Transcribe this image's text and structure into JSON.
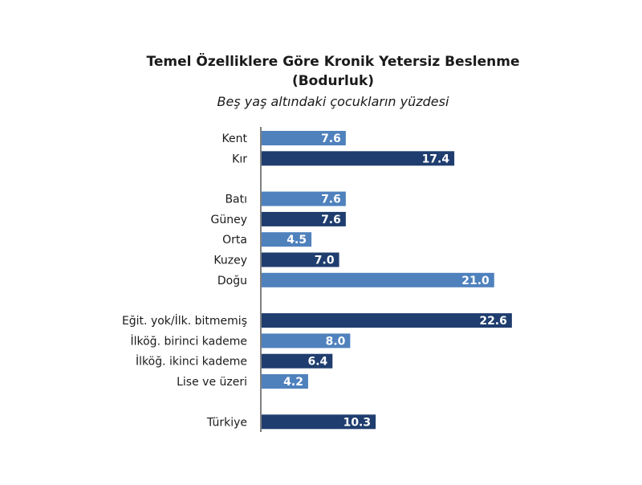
{
  "chart_data": {
    "type": "bar",
    "orientation": "horizontal",
    "title": "Temel Özelliklere Göre Kronik Yetersiz Beslenme",
    "title_line2": "(Bodurluk)",
    "subtitle": "Beş yaş altındaki çocukların yüzdesi",
    "categories": [
      "Kent",
      "Kır",
      "Batı",
      "Güney",
      "Orta",
      "Kuzey",
      "Doğu",
      "Eğit. yok/İlk. bitmemiş",
      "İlköğ. birinci kademe",
      "İlköğ. ikinci kademe",
      "Lise ve üzeri",
      "Türkiye"
    ],
    "values": [
      7.6,
      17.4,
      7.6,
      7.6,
      4.5,
      7.0,
      21.0,
      22.6,
      8.0,
      6.4,
      4.2,
      10.3
    ],
    "value_labels": [
      "7.6",
      "17.4",
      "7.6",
      "7.6",
      "4.5",
      "7.0",
      "21.0",
      "22.6",
      "8.0",
      "6.4",
      "4.2",
      "10.3"
    ],
    "groups": [
      {
        "indices": [
          0,
          1
        ]
      },
      {
        "indices": [
          2,
          3,
          4,
          5,
          6
        ]
      },
      {
        "indices": [
          7,
          8,
          9,
          10
        ]
      },
      {
        "indices": [
          11
        ]
      }
    ],
    "bar_shades": [
      "light",
      "dark",
      "light",
      "dark",
      "light",
      "dark",
      "light",
      "dark",
      "light",
      "dark",
      "light",
      "dark"
    ],
    "colors": {
      "light": "#4f81bd",
      "dark": "#1f3d6e",
      "axis": "#000000",
      "label_text": "#1a1a1a",
      "value_text": "#ffffff"
    },
    "xlim": [
      0,
      25
    ],
    "grid": false,
    "legend": false
  }
}
